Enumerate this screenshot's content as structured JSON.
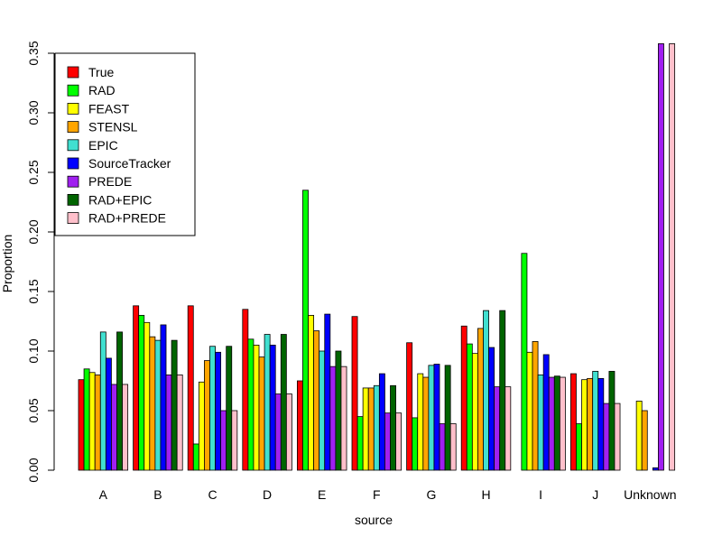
{
  "chart_data": {
    "type": "bar",
    "xlabel": "source",
    "ylabel": "Proportion",
    "ylim": [
      0,
      0.36
    ],
    "yticks": [
      0.0,
      0.05,
      0.1,
      0.15,
      0.2,
      0.25,
      0.3,
      0.35
    ],
    "ytick_labels": [
      "0.00",
      "0.05",
      "0.10",
      "0.15",
      "0.20",
      "0.25",
      "0.30",
      "0.35"
    ],
    "legend_position": "top-left",
    "categories": [
      "A",
      "B",
      "C",
      "D",
      "E",
      "F",
      "G",
      "H",
      "I",
      "J",
      "Unknown"
    ],
    "series": [
      {
        "name": "True",
        "color": "#FF0000",
        "values": [
          0.076,
          0.138,
          0.138,
          0.135,
          0.075,
          0.129,
          0.107,
          0.121,
          0.0,
          0.081,
          0.0
        ]
      },
      {
        "name": "RAD",
        "color": "#00FF00",
        "values": [
          0.085,
          0.13,
          0.022,
          0.11,
          0.235,
          0.045,
          0.044,
          0.106,
          0.182,
          0.039,
          0.0
        ]
      },
      {
        "name": "FEAST",
        "color": "#FFFF00",
        "values": [
          0.082,
          0.124,
          0.074,
          0.105,
          0.13,
          0.069,
          0.081,
          0.098,
          0.099,
          0.076,
          0.058
        ]
      },
      {
        "name": "STENSL",
        "color": "#FFA500",
        "values": [
          0.08,
          0.112,
          0.092,
          0.095,
          0.117,
          0.069,
          0.078,
          0.119,
          0.108,
          0.077,
          0.05
        ]
      },
      {
        "name": "EPIC",
        "color": "#40E0D0",
        "values": [
          0.116,
          0.109,
          0.104,
          0.114,
          0.1,
          0.071,
          0.088,
          0.134,
          0.08,
          0.083,
          0.0
        ]
      },
      {
        "name": "SourceTracker",
        "color": "#0000FF",
        "values": [
          0.094,
          0.122,
          0.099,
          0.105,
          0.131,
          0.081,
          0.089,
          0.103,
          0.097,
          0.077,
          0.002
        ]
      },
      {
        "name": "PREDE",
        "color": "#A020F0",
        "values": [
          0.072,
          0.08,
          0.05,
          0.064,
          0.087,
          0.048,
          0.039,
          0.07,
          0.078,
          0.056,
          0.358
        ]
      },
      {
        "name": "RAD+EPIC",
        "color": "#006400",
        "values": [
          0.116,
          0.109,
          0.104,
          0.114,
          0.1,
          0.071,
          0.088,
          0.134,
          0.079,
          0.083,
          0.0
        ]
      },
      {
        "name": "RAD+PREDE",
        "color": "#FFC0CB",
        "values": [
          0.072,
          0.08,
          0.05,
          0.064,
          0.087,
          0.048,
          0.039,
          0.07,
          0.078,
          0.056,
          0.358
        ]
      }
    ]
  }
}
